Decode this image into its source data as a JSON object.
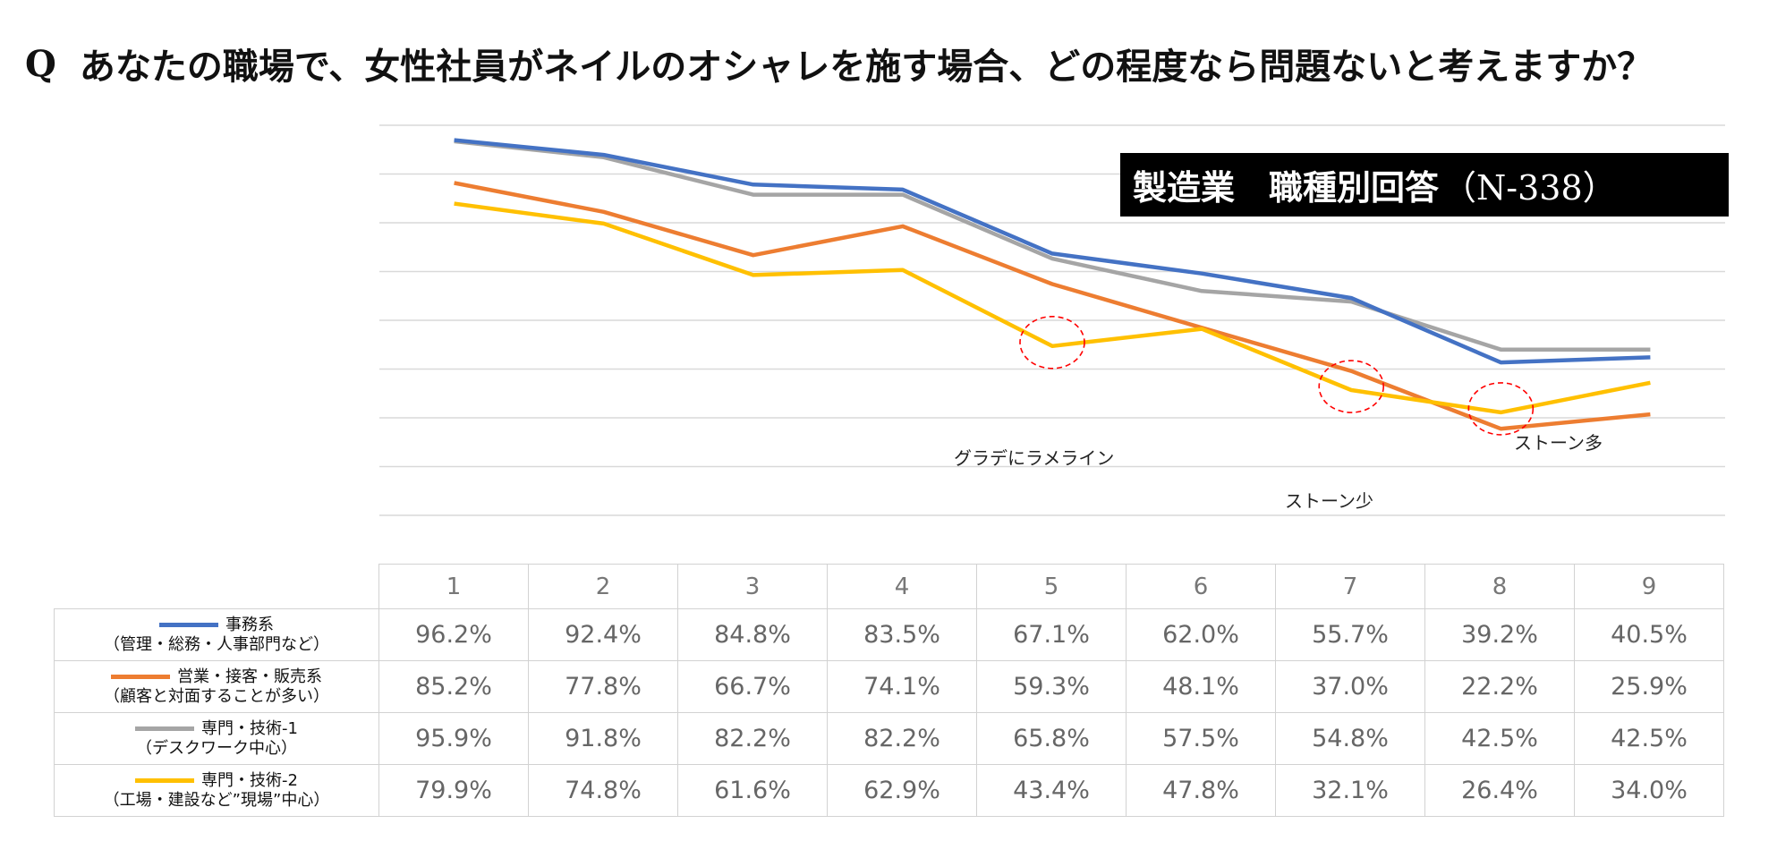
{
  "title": {
    "q": "Q",
    "text": "あなたの職場で、女性社員がネイルのオシャレを施す場合、どの程度なら問題ないと考えますか？"
  },
  "badge": {
    "label": "製造業　職種別回答",
    "n": "（N-338）"
  },
  "annotations": {
    "gradient": "グラデにラメライン",
    "stone_few": "ストーン少",
    "stone_many": "ストーン多"
  },
  "colors": {
    "series_0": "#4472C4",
    "series_1": "#ED7D31",
    "series_2": "#A5A5A5",
    "series_3": "#FFC000",
    "grid": "#D9D9D9",
    "highlight": "#FF0000"
  },
  "chart_data": {
    "type": "line",
    "x": [
      "1",
      "2",
      "3",
      "4",
      "5",
      "6",
      "7",
      "8",
      "9"
    ],
    "ylim": [
      0,
      100
    ],
    "grid": true,
    "series": [
      {
        "name": "事務系",
        "sub": "（管理・総務・人事部門など）",
        "values": [
          96.2,
          92.4,
          84.8,
          83.5,
          67.1,
          62.0,
          55.7,
          39.2,
          40.5
        ],
        "labels": [
          "96.2%",
          "92.4%",
          "84.8%",
          "83.5%",
          "67.1%",
          "62.0%",
          "55.7%",
          "39.2%",
          "40.5%"
        ]
      },
      {
        "name": "営業・接客・販売系",
        "sub": "（顧客と対面することが多い）",
        "values": [
          85.2,
          77.8,
          66.7,
          74.1,
          59.3,
          48.1,
          37.0,
          22.2,
          25.9
        ],
        "labels": [
          "85.2%",
          "77.8%",
          "66.7%",
          "74.1%",
          "59.3%",
          "48.1%",
          "37.0%",
          "22.2%",
          "25.9%"
        ]
      },
      {
        "name": "専門・技術-1",
        "sub": "（デスクワーク中心）",
        "values": [
          95.9,
          91.8,
          82.2,
          82.2,
          65.8,
          57.5,
          54.8,
          42.5,
          42.5
        ],
        "labels": [
          "95.9%",
          "91.8%",
          "82.2%",
          "82.2%",
          "65.8%",
          "57.5%",
          "54.8%",
          "42.5%",
          "42.5%"
        ]
      },
      {
        "name": "専門・技術-2",
        "sub": "（工場・建設など”現場”中心）",
        "values": [
          79.9,
          74.8,
          61.6,
          62.9,
          43.4,
          47.8,
          32.1,
          26.4,
          34.0
        ],
        "labels": [
          "79.9%",
          "74.8%",
          "61.6%",
          "62.9%",
          "43.4%",
          "47.8%",
          "32.1%",
          "26.4%",
          "34.0%"
        ]
      }
    ]
  }
}
